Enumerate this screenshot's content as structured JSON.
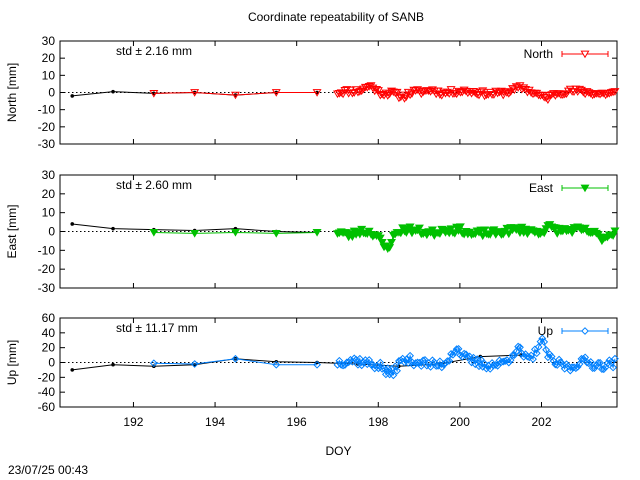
{
  "title": "Coordinate repeatability of SANB",
  "footer_timestamp": "23/07/25 00:43",
  "colors": {
    "north": "#ff0000",
    "east": "#00c000",
    "up": "#0080ff",
    "black_line": "#000000"
  },
  "chart_data": [
    {
      "type": "scatter",
      "component": "north",
      "ylabel": "North [mm]",
      "xlabel": "",
      "legend": "North",
      "legend_position": "top-right",
      "std_label": "std ± 2.16 mm",
      "xlim": [
        190.2,
        203.85
      ],
      "ylim": [
        -30,
        30
      ],
      "yticks": [
        "30",
        "20",
        "10",
        "0",
        "-10",
        "-20",
        "-30"
      ],
      "ytick_values": [
        30,
        20,
        10,
        0,
        -10,
        -20,
        -30
      ],
      "xticks": [],
      "daily_series": {
        "x": [
          190.5,
          191.5,
          192.5,
          193.5,
          194.5,
          195.5,
          196.5
        ],
        "y": [
          -2,
          0.5,
          -0.5,
          0,
          -1.5,
          0,
          0
        ]
      },
      "daily_markers_x": [
        192.5,
        193.5,
        194.5,
        195.5,
        196.5
      ],
      "daily_markers_y": [
        -0.5,
        0,
        -1.5,
        0,
        0
      ],
      "seed": 11,
      "dense_range": [
        197.0,
        203.8
      ],
      "dense_count": 150,
      "dense_amplitude": 2.2,
      "dense_events": [
        [
          197.8,
          4
        ],
        [
          198.6,
          -3
        ],
        [
          199.3,
          2
        ],
        [
          201.5,
          2
        ],
        [
          202.1,
          -2.5
        ]
      ]
    },
    {
      "type": "scatter",
      "component": "east",
      "ylabel": "East [mm]",
      "xlabel": "",
      "legend": "East",
      "legend_position": "top-right",
      "std_label": "std ± 2.60 mm",
      "xlim": [
        190.2,
        203.85
      ],
      "ylim": [
        -30,
        30
      ],
      "yticks": [
        "30",
        "20",
        "10",
        "0",
        "-10",
        "-20",
        "-30"
      ],
      "ytick_values": [
        30,
        20,
        10,
        0,
        -10,
        -20,
        -30
      ],
      "xticks": [],
      "daily_series": {
        "x": [
          190.5,
          191.5,
          192.5,
          193.5,
          194.5,
          195.5,
          196.5
        ],
        "y": [
          4,
          1.5,
          1,
          0.5,
          1.5,
          0,
          -0.5
        ]
      },
      "daily_markers_x": [
        192.5,
        193.5,
        194.5,
        195.5,
        196.5
      ],
      "daily_markers_y": [
        -0.5,
        -1,
        -0.5,
        -1,
        -0.5
      ],
      "seed": 23,
      "dense_range": [
        197.0,
        203.8
      ],
      "dense_count": 150,
      "dense_amplitude": 2.6,
      "dense_events": [
        [
          197.3,
          -3
        ],
        [
          198.2,
          -8
        ],
        [
          199.6,
          1.5
        ],
        [
          200.3,
          -2
        ],
        [
          202.2,
          3
        ],
        [
          203.5,
          -2.5
        ]
      ]
    },
    {
      "type": "scatter",
      "component": "up",
      "ylabel": "Up [mm]",
      "xlabel": "DOY",
      "legend": "Up",
      "legend_position": "top-right",
      "std_label": "std ± 11.17 mm",
      "xlim": [
        190.2,
        203.85
      ],
      "ylim": [
        -60,
        60
      ],
      "yticks": [
        "60",
        "40",
        "20",
        "0",
        "-20",
        "-40",
        "-60"
      ],
      "ytick_values": [
        60,
        40,
        20,
        0,
        -20,
        -40,
        -60
      ],
      "xticks": [
        "192",
        "194",
        "196",
        "198",
        "200",
        "202"
      ],
      "xtick_values": [
        192,
        194,
        196,
        198,
        200,
        202
      ],
      "daily_series": {
        "x": [
          190.5,
          191.5,
          192.5,
          193.5,
          194.5,
          195.5,
          196.5,
          197.5,
          198.5,
          199.5,
          200.5,
          201.5
        ],
        "y": [
          -10,
          -3,
          -5,
          -3,
          5,
          1,
          0,
          -2,
          -5,
          -2,
          8,
          10
        ]
      },
      "daily_markers_x": [
        192.5,
        193.5,
        194.5,
        195.5,
        196.5
      ],
      "daily_markers_y": [
        -1,
        -2,
        5,
        -3,
        -3
      ],
      "seed": 37,
      "dense_range": [
        197.0,
        203.8
      ],
      "dense_count": 150,
      "dense_amplitude": 9,
      "dense_events": [
        [
          198.3,
          -14
        ],
        [
          199.9,
          16
        ],
        [
          201.4,
          14
        ],
        [
          202.0,
          30
        ],
        [
          202.7,
          -10
        ]
      ]
    }
  ]
}
